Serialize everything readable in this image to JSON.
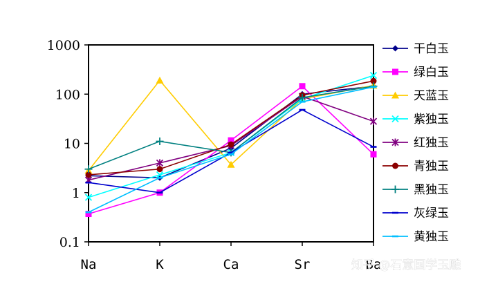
{
  "chart_data": {
    "type": "line",
    "y_scale": "log",
    "ylim": [
      0.1,
      1000
    ],
    "grid": false,
    "legend_position": "right",
    "categories": [
      "Na",
      "K",
      "Ca",
      "Sr",
      "Ba"
    ],
    "y_ticks": [
      "0.1",
      "1",
      "10",
      "100",
      "1000"
    ],
    "series": [
      {
        "name": "干白玉",
        "color": "#00008b",
        "marker": "diamond",
        "values": [
          2.2,
          2.0,
          8.0,
          100,
          145
        ]
      },
      {
        "name": "绿白玉",
        "color": "#ff00ff",
        "marker": "square",
        "values": [
          0.37,
          1.0,
          11.5,
          145,
          6.0
        ]
      },
      {
        "name": "天蓝玉",
        "color": "#ffcc00",
        "marker": "triangle",
        "values": [
          2.8,
          190,
          3.7,
          80,
          150
        ]
      },
      {
        "name": "紫独玉",
        "color": "#00ffff",
        "marker": "x",
        "values": [
          0.8,
          2.3,
          6.5,
          80,
          240
        ]
      },
      {
        "name": "红独玉",
        "color": "#800080",
        "marker": "star",
        "values": [
          1.8,
          4.0,
          9.0,
          90,
          28
        ]
      },
      {
        "name": "青独玉",
        "color": "#8b0000",
        "marker": "circle",
        "values": [
          2.3,
          3.0,
          9.5,
          95,
          185
        ]
      },
      {
        "name": "黑独玉",
        "color": "#008080",
        "marker": "plus",
        "values": [
          3.0,
          11.0,
          6.5,
          85,
          145
        ]
      },
      {
        "name": "灰绿玉",
        "color": "#0000cd",
        "marker": "dash",
        "values": [
          1.6,
          1.0,
          6.5,
          48,
          8.5
        ]
      },
      {
        "name": "黄独玉",
        "color": "#00bfff",
        "marker": "dash",
        "values": [
          0.4,
          2.0,
          6.0,
          70,
          140
        ]
      }
    ]
  },
  "watermark": "知乎 @石意国学玉雕"
}
